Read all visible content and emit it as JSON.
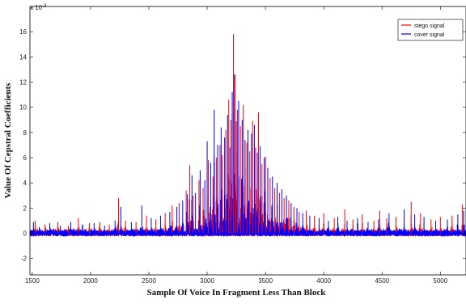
{
  "chart_data": {
    "type": "line",
    "title": "",
    "xlabel": "Sample Of Voice In Fragment Less Than Block",
    "ylabel": "Value Of Cepstral Coefficients",
    "y_multiplier_label": "x 10",
    "y_multiplier_exp": "-3",
    "xlim": [
      1480,
      5220
    ],
    "ylim": [
      -3.3,
      18
    ],
    "xticks": [
      1500,
      2000,
      2500,
      3000,
      3500,
      4000,
      4500,
      5000
    ],
    "yticks": [
      -2,
      0,
      2,
      4,
      6,
      8,
      10,
      12,
      14,
      16
    ],
    "grid": false,
    "legend_position": "top-right",
    "series": [
      {
        "name": "stego signal",
        "color": "#ff0000",
        "peaks": [
          [
            1525,
            1.0
          ],
          [
            1610,
            0.7
          ],
          [
            1720,
            0.9
          ],
          [
            1810,
            0.6
          ],
          [
            1895,
            1.2
          ],
          [
            1990,
            0.8
          ],
          [
            2080,
            0.9
          ],
          [
            2160,
            0.7
          ],
          [
            2240,
            2.8
          ],
          [
            2300,
            1.0
          ],
          [
            2390,
            0.9
          ],
          [
            2480,
            1.4
          ],
          [
            2560,
            1.1
          ],
          [
            2640,
            1.6
          ],
          [
            2700,
            2.2
          ],
          [
            2760,
            2.4
          ],
          [
            2820,
            3.4
          ],
          [
            2850,
            5.4
          ],
          [
            2880,
            3.0
          ],
          [
            2930,
            4.2
          ],
          [
            2965,
            3.6
          ],
          [
            3010,
            5.8
          ],
          [
            3050,
            4.5
          ],
          [
            3080,
            6.0
          ],
          [
            3110,
            7.0
          ],
          [
            3130,
            6.2
          ],
          [
            3160,
            8.2
          ],
          [
            3185,
            10.6
          ],
          [
            3205,
            9.0
          ],
          [
            3225,
            15.8
          ],
          [
            3240,
            12.6
          ],
          [
            3260,
            9.8
          ],
          [
            3285,
            8.5
          ],
          [
            3310,
            10.2
          ],
          [
            3340,
            7.2
          ],
          [
            3365,
            6.5
          ],
          [
            3390,
            8.9
          ],
          [
            3415,
            6.8
          ],
          [
            3440,
            9.6
          ],
          [
            3470,
            5.5
          ],
          [
            3500,
            6.1
          ],
          [
            3540,
            4.4
          ],
          [
            3580,
            3.6
          ],
          [
            3620,
            3.2
          ],
          [
            3660,
            2.8
          ],
          [
            3700,
            2.6
          ],
          [
            3745,
            2.1
          ],
          [
            3790,
            1.7
          ],
          [
            3850,
            1.8
          ],
          [
            3920,
            1.4
          ],
          [
            4000,
            1.6
          ],
          [
            4090,
            1.2
          ],
          [
            4180,
            1.9
          ],
          [
            4250,
            1.1
          ],
          [
            4330,
            1.5
          ],
          [
            4430,
            1.0
          ],
          [
            4480,
            1.8
          ],
          [
            4540,
            1.2
          ],
          [
            4620,
            1.3
          ],
          [
            4750,
            2.5
          ],
          [
            4830,
            1.6
          ],
          [
            4920,
            1.1
          ],
          [
            5000,
            1.3
          ],
          [
            5100,
            1.4
          ],
          [
            5190,
            2.3
          ]
        ]
      },
      {
        "name": "cover signal",
        "color": "#0000ff",
        "peaks": [
          [
            1510,
            0.9
          ],
          [
            1560,
            0.5
          ],
          [
            1650,
            0.8
          ],
          [
            1740,
            0.6
          ],
          [
            1830,
            0.9
          ],
          [
            1930,
            0.7
          ],
          [
            2030,
            0.8
          ],
          [
            2120,
            0.6
          ],
          [
            2210,
            1.0
          ],
          [
            2260,
            2.1
          ],
          [
            2350,
            0.9
          ],
          [
            2440,
            2.2
          ],
          [
            2520,
            1.2
          ],
          [
            2600,
            1.4
          ],
          [
            2680,
            1.7
          ],
          [
            2740,
            2.1
          ],
          [
            2790,
            2.6
          ],
          [
            2830,
            3.1
          ],
          [
            2870,
            4.6
          ],
          [
            2900,
            3.2
          ],
          [
            2940,
            5.0
          ],
          [
            2980,
            4.2
          ],
          [
            3000,
            7.3
          ],
          [
            3030,
            5.6
          ],
          [
            3060,
            9.8
          ],
          [
            3090,
            7.0
          ],
          [
            3120,
            8.4
          ],
          [
            3150,
            7.6
          ],
          [
            3175,
            9.4
          ],
          [
            3195,
            6.8
          ],
          [
            3215,
            11.2
          ],
          [
            3230,
            12.6
          ],
          [
            3250,
            8.9
          ],
          [
            3270,
            10.5
          ],
          [
            3300,
            9.0
          ],
          [
            3325,
            7.4
          ],
          [
            3350,
            8.2
          ],
          [
            3380,
            7.9
          ],
          [
            3405,
            8.6
          ],
          [
            3430,
            6.4
          ],
          [
            3455,
            6.9
          ],
          [
            3490,
            6.0
          ],
          [
            3520,
            5.2
          ],
          [
            3560,
            4.5
          ],
          [
            3600,
            4.0
          ],
          [
            3640,
            3.5
          ],
          [
            3680,
            3.0
          ],
          [
            3720,
            2.4
          ],
          [
            3770,
            2.0
          ],
          [
            3820,
            1.6
          ],
          [
            3880,
            1.4
          ],
          [
            3960,
            1.2
          ],
          [
            4040,
            1.0
          ],
          [
            4120,
            1.3
          ],
          [
            4200,
            1.0
          ],
          [
            4290,
            1.2
          ],
          [
            4380,
            0.9
          ],
          [
            4470,
            1.1
          ],
          [
            4560,
            1.6
          ],
          [
            4690,
            1.9
          ],
          [
            4780,
            1.5
          ],
          [
            4860,
            1.3
          ],
          [
            4960,
            1.0
          ],
          [
            5060,
            1.1
          ],
          [
            5150,
            1.5
          ],
          [
            5200,
            1.8
          ]
        ]
      }
    ]
  }
}
